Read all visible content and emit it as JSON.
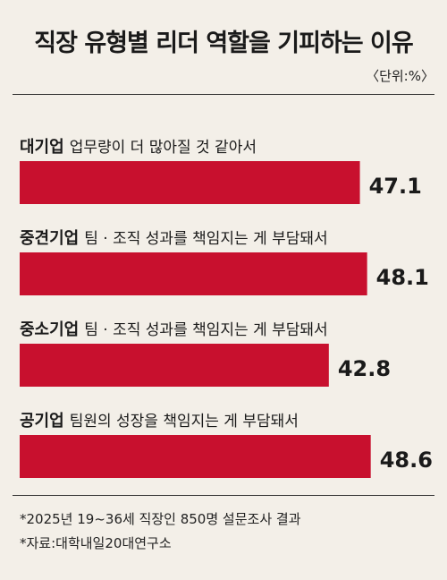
{
  "header": {
    "title": "직장 유형별 리더 역할을 기피하는 이유",
    "unit": "〈단위:%〉"
  },
  "chart_data": {
    "type": "bar",
    "orientation": "horizontal",
    "title": "직장 유형별 리더 역할을 기피하는 이유",
    "unit": "%",
    "categories": [
      {
        "group": "대기업",
        "reason": "업무량이 더 많아질 것 같아서"
      },
      {
        "group": "중견기업",
        "reason": "팀 · 조직 성과를 책임지는 게 부담돼서"
      },
      {
        "group": "중소기업",
        "reason": "팀 · 조직 성과를 책임지는 게 부담돼서"
      },
      {
        "group": "공기업",
        "reason": "팀원의 성장을 책임지는 게 부담돼서"
      }
    ],
    "values": [
      47.1,
      48.1,
      42.8,
      48.6
    ],
    "value_labels": [
      "47.1",
      "48.1",
      "42.8",
      "48.6"
    ],
    "bar_color": "#c8102e"
  },
  "footnotes": [
    "*2025년 19~36세 직장인 850명 설문조사 결과",
    "*자료:대학내일20대연구소"
  ]
}
